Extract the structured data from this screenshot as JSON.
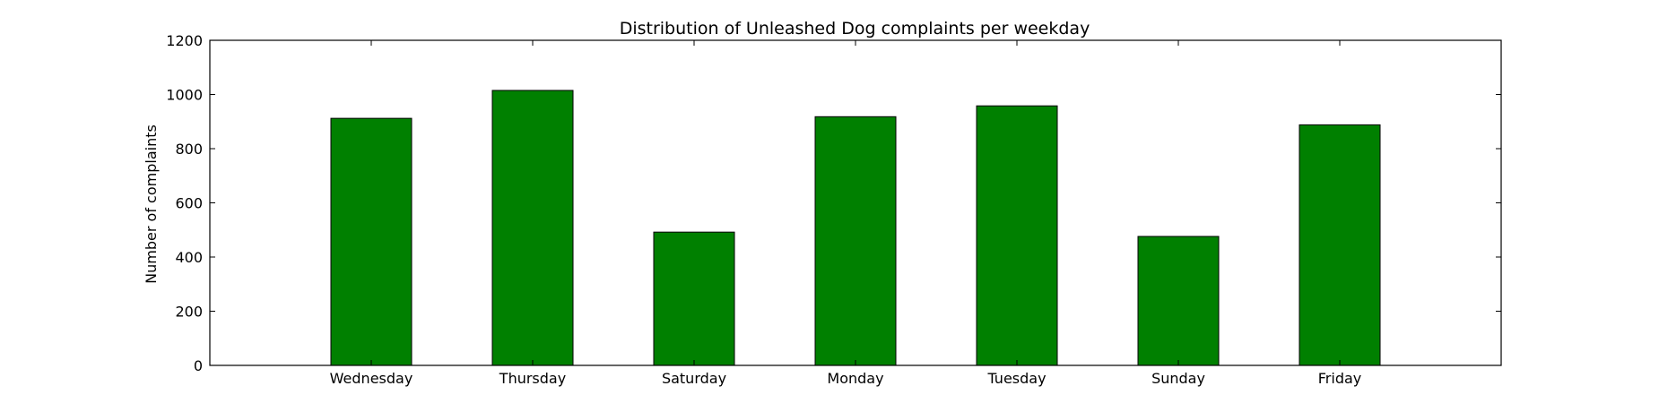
{
  "chart_data": {
    "type": "bar",
    "title": "Distribution of  Unleashed Dog complaints per weekday",
    "xlabel": "",
    "ylabel": "Number of complaints",
    "categories": [
      "Wednesday",
      "Thursday",
      "Saturday",
      "Monday",
      "Tuesday",
      "Sunday",
      "Friday"
    ],
    "values": [
      912,
      1015,
      492,
      918,
      958,
      476,
      888
    ],
    "ylim": [
      0,
      1200
    ],
    "yticks": [
      0,
      200,
      400,
      600,
      800,
      1000,
      1200
    ],
    "grid": false,
    "legend": "none",
    "bar_color": "#008000"
  }
}
